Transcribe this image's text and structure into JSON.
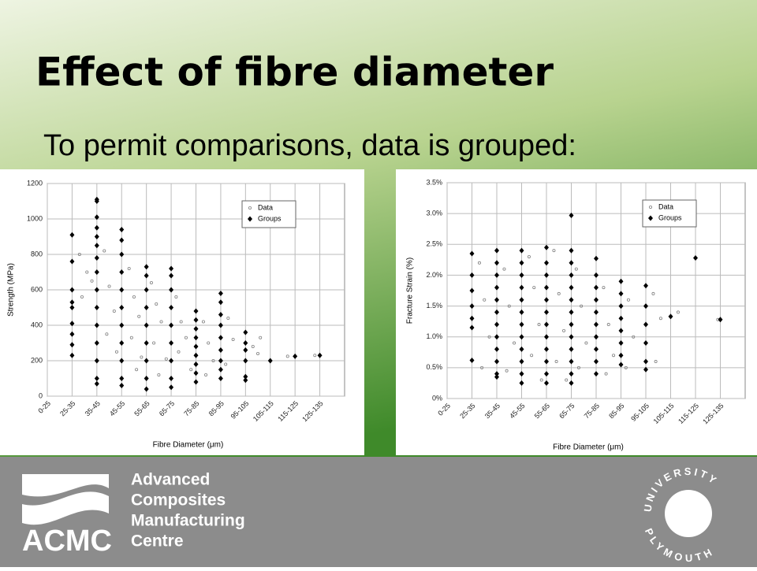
{
  "slide": {
    "title": "Effect of fibre diameter",
    "subtitle": "To permit comparisons, data is grouped:"
  },
  "chart_data": [
    {
      "type": "scatter",
      "y_label": "Strength (MPa)",
      "x_label": "Fibre Diameter (μm)",
      "legend": "upper right",
      "grid": true,
      "xlim": [
        0,
        12
      ],
      "ylim": [
        0,
        1200
      ],
      "yticks": [
        0,
        200,
        400,
        600,
        800,
        1000,
        1200
      ],
      "xticks": [
        {
          "value": 0,
          "label": "0-25"
        },
        {
          "value": 1,
          "label": "25-35"
        },
        {
          "value": 2,
          "label": "35-45"
        },
        {
          "value": 3,
          "label": "45-55"
        },
        {
          "value": 4,
          "label": "55-65"
        },
        {
          "value": 5,
          "label": "65-75"
        },
        {
          "value": 6,
          "label": "75-85"
        },
        {
          "value": 7,
          "label": "85-95"
        },
        {
          "value": 8,
          "label": "95-105"
        },
        {
          "value": 9,
          "label": "105-115"
        },
        {
          "value": 10,
          "label": "115-125"
        },
        {
          "value": 11,
          "label": "125-135"
        }
      ],
      "series": [
        {
          "name": "Data",
          "color": "#808080",
          "marker": "circle",
          "x": [
            1.3,
            1.4,
            1.6,
            1.8,
            2.3,
            2.5,
            2.7,
            2.4,
            2.8,
            3.3,
            3.5,
            3.7,
            3.4,
            3.8,
            3.6,
            4.2,
            4.4,
            4.6,
            4.3,
            4.8,
            4.5,
            5.2,
            5.4,
            5.6,
            5.3,
            5.8,
            6.3,
            6.5,
            6.7,
            6.4,
            7.3,
            7.5,
            7.2,
            8.3,
            8.5,
            8.6,
            9.7,
            10.8
          ],
          "values": [
            800,
            560,
            700,
            650,
            820,
            620,
            480,
            350,
            250,
            720,
            560,
            450,
            330,
            220,
            150,
            640,
            520,
            420,
            300,
            210,
            120,
            560,
            420,
            330,
            250,
            150,
            420,
            300,
            200,
            120,
            440,
            320,
            180,
            280,
            240,
            330,
            225,
            230
          ]
        },
        {
          "name": "Groups",
          "color": "#000000",
          "marker": "diamond",
          "x": [
            1,
            1,
            1,
            1,
            1,
            1,
            1,
            1,
            1,
            2,
            2,
            2,
            2,
            2,
            2,
            2,
            2,
            2,
            2,
            2,
            2,
            2,
            2,
            2,
            3,
            3,
            3,
            3,
            3,
            3,
            3,
            3,
            3,
            3,
            3,
            4,
            4,
            4,
            4,
            4,
            4,
            4,
            4,
            4,
            5,
            5,
            5,
            5,
            5,
            5,
            5,
            5,
            5,
            6,
            6,
            6,
            6,
            6,
            6,
            6,
            6,
            6,
            7,
            7,
            7,
            7,
            7,
            7,
            7,
            7,
            7,
            8,
            8,
            8,
            8,
            8,
            8,
            9,
            10,
            11
          ],
          "values": [
            910,
            760,
            600,
            530,
            500,
            410,
            350,
            290,
            230,
            1110,
            1100,
            1010,
            950,
            900,
            850,
            780,
            700,
            600,
            500,
            400,
            300,
            200,
            100,
            70,
            940,
            880,
            800,
            700,
            600,
            500,
            400,
            300,
            200,
            100,
            60,
            730,
            680,
            600,
            500,
            400,
            300,
            200,
            100,
            40,
            720,
            680,
            600,
            500,
            400,
            300,
            200,
            100,
            50,
            480,
            430,
            380,
            330,
            280,
            230,
            180,
            130,
            80,
            580,
            530,
            460,
            400,
            330,
            260,
            200,
            150,
            100,
            360,
            300,
            260,
            200,
            110,
            90,
            200,
            225,
            230
          ]
        }
      ]
    },
    {
      "type": "scatter",
      "y_label": "Fracture Strain (%)",
      "x_label": "Fibre Diameter (μm)",
      "legend": "upper right",
      "grid": true,
      "xlim": [
        0,
        12
      ],
      "ylim": [
        0,
        3.5
      ],
      "yticks": [
        {
          "value": 0,
          "label": "0%"
        },
        {
          "value": 0.5,
          "label": "0.5%"
        },
        {
          "value": 1,
          "label": "1.0%"
        },
        {
          "value": 1.5,
          "label": "1.5%"
        },
        {
          "value": 2,
          "label": "2.0%"
        },
        {
          "value": 2.5,
          "label": "2.5%"
        },
        {
          "value": 3,
          "label": "3.0%"
        },
        {
          "value": 3.5,
          "label": "3.5%"
        }
      ],
      "xticks": [
        {
          "value": 0,
          "label": "0-25"
        },
        {
          "value": 1,
          "label": "25-35"
        },
        {
          "value": 2,
          "label": "35-45"
        },
        {
          "value": 3,
          "label": "45-55"
        },
        {
          "value": 4,
          "label": "55-65"
        },
        {
          "value": 5,
          "label": "65-75"
        },
        {
          "value": 6,
          "label": "75-85"
        },
        {
          "value": 7,
          "label": "85-95"
        },
        {
          "value": 8,
          "label": "95-105"
        },
        {
          "value": 9,
          "label": "105-115"
        },
        {
          "value": 10,
          "label": "115-125"
        },
        {
          "value": 11,
          "label": "125-135"
        }
      ],
      "series": [
        {
          "name": "Data",
          "color": "#808080",
          "marker": "circle",
          "x": [
            1.3,
            1.5,
            1.7,
            1.4,
            2.3,
            2.5,
            2.7,
            2.4,
            3.3,
            3.5,
            3.7,
            3.4,
            3.8,
            4.3,
            4.5,
            4.7,
            4.4,
            4.8,
            5.2,
            5.4,
            5.6,
            5.3,
            6.3,
            6.5,
            6.7,
            6.4,
            7.3,
            7.5,
            7.2,
            8.3,
            8.6,
            8.4,
            9.3,
            10.9
          ],
          "values": [
            2.2,
            1.6,
            1.0,
            0.5,
            2.1,
            1.5,
            0.9,
            0.45,
            2.3,
            1.8,
            1.2,
            0.7,
            0.3,
            2.4,
            1.7,
            1.1,
            0.6,
            0.3,
            2.1,
            1.5,
            0.9,
            0.5,
            1.8,
            1.2,
            0.7,
            0.4,
            1.6,
            1.0,
            0.5,
            1.7,
            1.3,
            0.6,
            1.4,
            1.28
          ]
        },
        {
          "name": "Groups",
          "color": "#000000",
          "marker": "diamond",
          "x": [
            1,
            1,
            1,
            1,
            1,
            1,
            1,
            2,
            2,
            2,
            2,
            2,
            2,
            2,
            2,
            2,
            2,
            2,
            2,
            3,
            3,
            3,
            3,
            3,
            3,
            3,
            3,
            3,
            3,
            3,
            3,
            4,
            4,
            4,
            4,
            4,
            4,
            4,
            4,
            4,
            4,
            4,
            4,
            5,
            5,
            5,
            5,
            5,
            5,
            5,
            5,
            5,
            5,
            5,
            5,
            5,
            6,
            6,
            6,
            6,
            6,
            6,
            6,
            6,
            6,
            6,
            7,
            7,
            7,
            7,
            7,
            7,
            7,
            7,
            8,
            8,
            8,
            8,
            8,
            8,
            9,
            10,
            11
          ],
          "values": [
            2.35,
            2.0,
            1.75,
            1.5,
            1.3,
            1.15,
            0.62,
            2.4,
            2.2,
            2.0,
            1.8,
            1.6,
            1.4,
            1.2,
            1.0,
            0.8,
            0.6,
            0.4,
            0.35,
            2.4,
            2.2,
            2.0,
            1.8,
            1.6,
            1.4,
            1.2,
            1.0,
            0.8,
            0.6,
            0.4,
            0.25,
            2.45,
            2.2,
            2.0,
            1.8,
            1.6,
            1.4,
            1.2,
            1.0,
            0.8,
            0.6,
            0.4,
            0.25,
            2.97,
            2.4,
            2.2,
            2.0,
            1.8,
            1.6,
            1.4,
            1.2,
            1.0,
            0.8,
            0.6,
            0.4,
            0.25,
            2.27,
            2.0,
            1.8,
            1.6,
            1.4,
            1.2,
            1.0,
            0.8,
            0.6,
            0.4,
            1.9,
            1.7,
            1.5,
            1.3,
            1.1,
            0.9,
            0.7,
            0.55,
            1.83,
            1.5,
            1.2,
            0.9,
            0.6,
            0.47,
            1.33,
            2.28,
            1.28
          ]
        }
      ]
    }
  ],
  "footer": {
    "lines": [
      "Advanced",
      "Composites",
      "Manufacturing",
      "Centre"
    ],
    "logo": "ACMC",
    "university_top": "UNIVERSITY",
    "university_bottom": "PLYMOUTH"
  }
}
